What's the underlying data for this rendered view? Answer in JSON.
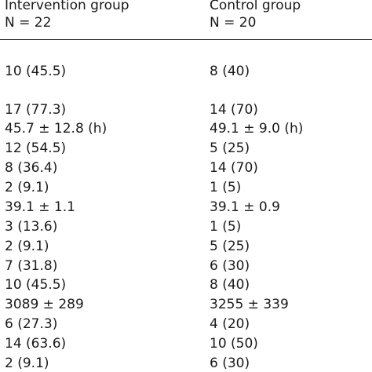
{
  "header": {
    "col_a_title": "Intervention group",
    "col_a_n": "N = 22",
    "col_b_title": "Control group",
    "col_b_n": "N = 20"
  },
  "rows": [
    {
      "a": "10 (45.5)",
      "b": "8 (40)"
    },
    {
      "a": "17 (77.3)",
      "b": "14 (70)"
    },
    {
      "a": "45.7 ± 12.8 (h)",
      "b": "49.1 ± 9.0 (h)"
    },
    {
      "a": "12 (54.5)",
      "b": "5 (25)"
    },
    {
      "a": "8 (36.4)",
      "b": "14 (70)"
    },
    {
      "a": "2 (9.1)",
      "b": "1 (5)"
    },
    {
      "a": "39.1 ± 1.1",
      "b": "39.1 ± 0.9"
    },
    {
      "a": "3 (13.6)",
      "b": "1 (5)"
    },
    {
      "a": "2 (9.1)",
      "b": "5 (25)"
    },
    {
      "a": "7 (31.8)",
      "b": "6 (30)"
    },
    {
      "a": "10 (45.5)",
      "b": "8 (40)"
    },
    {
      "a": "3089 ± 289",
      "b": "3255 ± 339"
    },
    {
      "a": "6 (27.3)",
      "b": "4 (20)"
    },
    {
      "a": "14 (63.6)",
      "b": "10 (50)"
    },
    {
      "a": "2 (9.1)",
      "b": "6 (30)"
    }
  ]
}
